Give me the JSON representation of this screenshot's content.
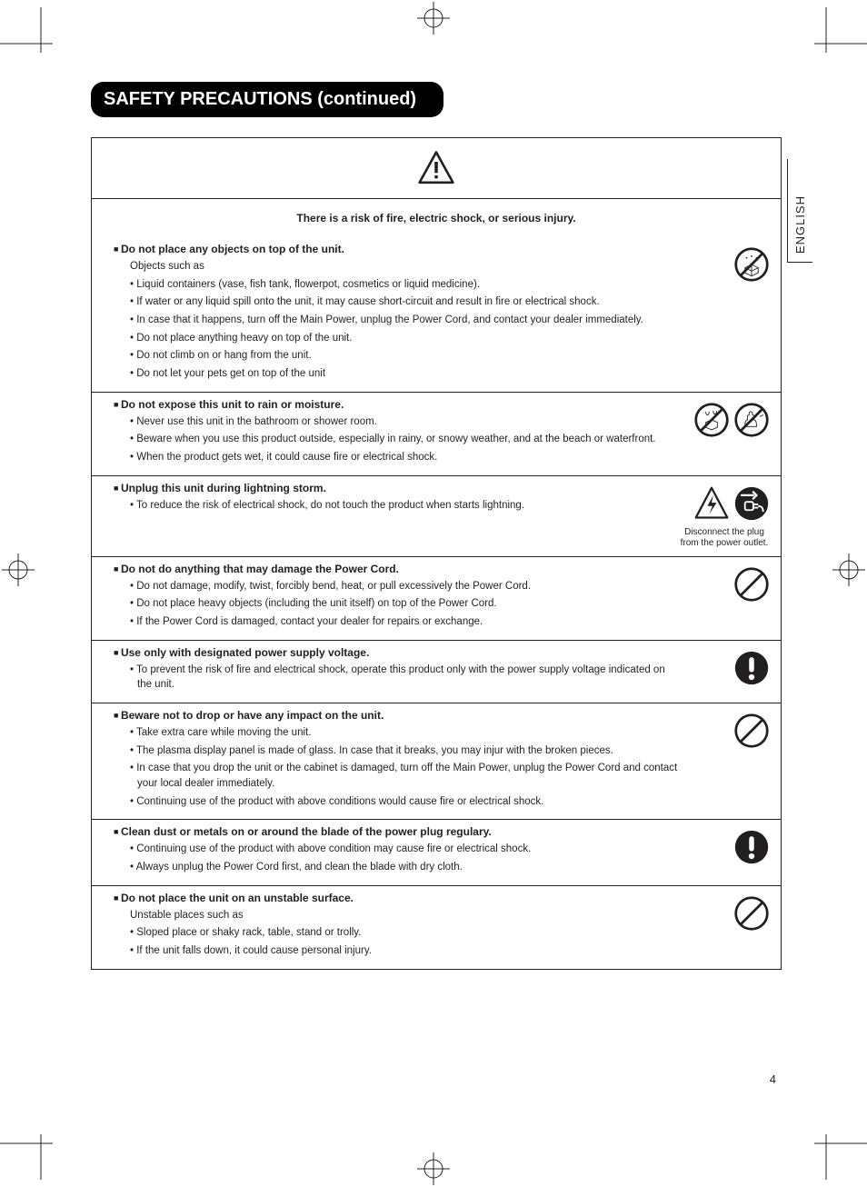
{
  "title": "SAFETY PRECAUTIONS (continued)",
  "language_tab": "ENGLISH",
  "page_number": "4",
  "risk_statement": "There is a risk of fire, electric shock, or serious injury.",
  "colors": {
    "ink": "#231f20",
    "paper": "#ffffff",
    "pill_bg": "#000000",
    "pill_fg": "#ffffff"
  },
  "icons": {
    "prohibit": {
      "type": "prohibit-circle",
      "stroke": "#231f20",
      "stroke_width": 3
    },
    "mandatory": {
      "type": "filled-circle-exclaim",
      "fill": "#231f20"
    },
    "shock": {
      "type": "triangle-bolt",
      "stroke": "#231f20"
    },
    "unplug": {
      "type": "filled-circle-plug",
      "fill": "#231f20"
    },
    "no_objects": {
      "type": "prohibit-circle-cube"
    },
    "no_wet": {
      "type": "prohibit-circle-drops-cube"
    },
    "no_wet_hand": {
      "type": "prohibit-circle-hand-water"
    }
  },
  "sections": [
    {
      "heading": "Do not place any objects on top of the unit.",
      "intro": "Objects such as",
      "bullets": [
        "Liquid containers (vase, fish tank, flowerpot, cosmetics or liquid medicine).",
        "If water or any liquid spill onto the unit, it may cause short-circuit and result in fire or electrical shock.",
        "In case that it happens, turn off the Main Power, unplug the Power Cord, and contact your dealer immediately.",
        "Do not place anything heavy on top of the unit.",
        "Do not climb on or hang from the unit.",
        "Do not let your pets get on top of the unit"
      ],
      "icons": [
        "no_objects"
      ]
    },
    {
      "heading": "Do not expose this unit to rain or moisture.",
      "bullets": [
        "Never use this unit in the bathroom or shower room.",
        "Beware when you use this product outside, especially in rainy, or snowy weather, and at the beach or waterfront.",
        "When the product gets wet, it could cause fire or electrical shock."
      ],
      "icons": [
        "no_wet",
        "no_wet_hand"
      ]
    },
    {
      "heading": "Unplug this unit during lightning storm.",
      "bullets": [
        "To reduce the risk of electrical shock, do not touch the product when starts lightning."
      ],
      "icons": [
        "shock",
        "unplug"
      ],
      "icon_caption": "Disconnect the plug from the power outlet."
    },
    {
      "heading": "Do not do anything that may damage the Power Cord.",
      "bullets": [
        "Do not damage, modify, twist, forcibly bend, heat, or pull excessively the Power Cord.",
        "Do not place heavy objects (including the unit itself) on top of the Power Cord.",
        "If the Power Cord is damaged, contact your dealer for repairs or exchange."
      ],
      "icons": [
        "prohibit"
      ]
    },
    {
      "heading": "Use only with designated power supply voltage.",
      "bullets": [
        "To prevent the risk of fire and electrical shock, operate this product only with the power supply voltage indicated on the unit."
      ],
      "icons": [
        "mandatory"
      ]
    },
    {
      "heading": "Beware not to drop or have any impact on the unit.",
      "bullets": [
        "Take extra care while moving the unit.",
        "The plasma display panel is made of glass.  In case that it breaks, you may injur with the broken pieces.",
        "In case that you drop the unit or the cabinet is damaged, turn off the Main Power, unplug the Power Cord and contact your local dealer immediately.",
        "Continuing use of the product with above conditions would cause fire or electrical shock."
      ],
      "icons": [
        "prohibit"
      ]
    },
    {
      "heading": "Clean dust or metals on or around the blade of the power plug regulary.",
      "bullets": [
        "Continuing use of the product with above condition may cause fire or electrical shock.",
        "Always unplug the Power Cord first, and clean the blade with dry cloth."
      ],
      "icons": [
        "mandatory"
      ]
    },
    {
      "heading": "Do not place the unit on an unstable surface.",
      "intro": "Unstable places such as",
      "bullets": [
        "Sloped place or shaky rack, table, stand or trolly.",
        "If the unit falls down, it could cause personal injury."
      ],
      "icons": [
        "prohibit"
      ]
    }
  ]
}
